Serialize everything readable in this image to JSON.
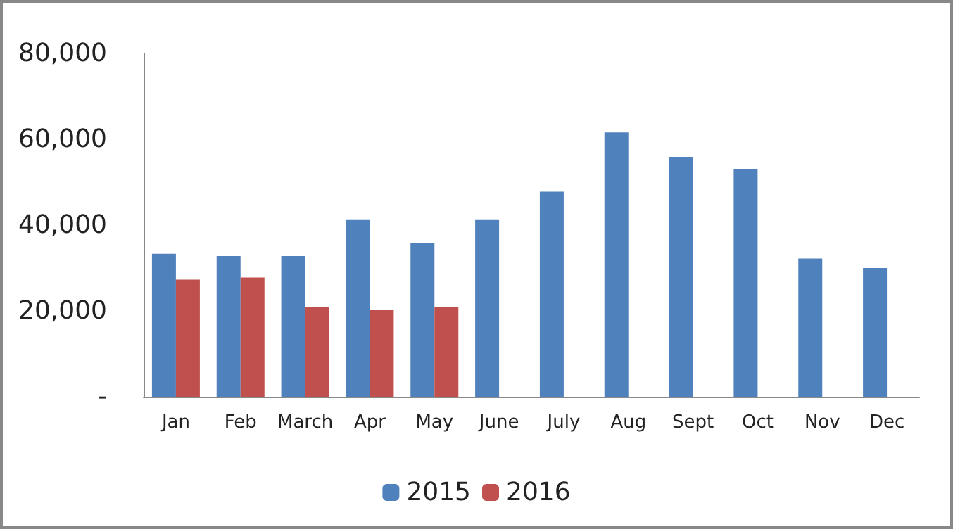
{
  "chart_data": {
    "type": "bar",
    "categories": [
      "Jan",
      "Feb",
      "March",
      "Apr",
      "May",
      "June",
      "July",
      "Aug",
      "Sept",
      "Oct",
      "Nov",
      "Dec"
    ],
    "series": [
      {
        "name": "2015",
        "color": "#4f81bd",
        "values": [
          33300,
          32800,
          32800,
          41200,
          35900,
          41200,
          47800,
          61600,
          55900,
          53100,
          32200,
          30000
        ]
      },
      {
        "name": "2016",
        "color": "#c0504d",
        "values": [
          27300,
          27800,
          21000,
          20300,
          21000,
          null,
          null,
          null,
          null,
          null,
          null,
          null
        ]
      }
    ],
    "ylim": [
      0,
      80000
    ],
    "yticks": [
      {
        "value": 0,
        "label": "-"
      },
      {
        "value": 20000,
        "label": "20,000"
      },
      {
        "value": 40000,
        "label": "40,000"
      },
      {
        "value": 60000,
        "label": "60,000"
      },
      {
        "value": 80000,
        "label": "80,000"
      }
    ],
    "grid": false,
    "legend": "bottom"
  }
}
